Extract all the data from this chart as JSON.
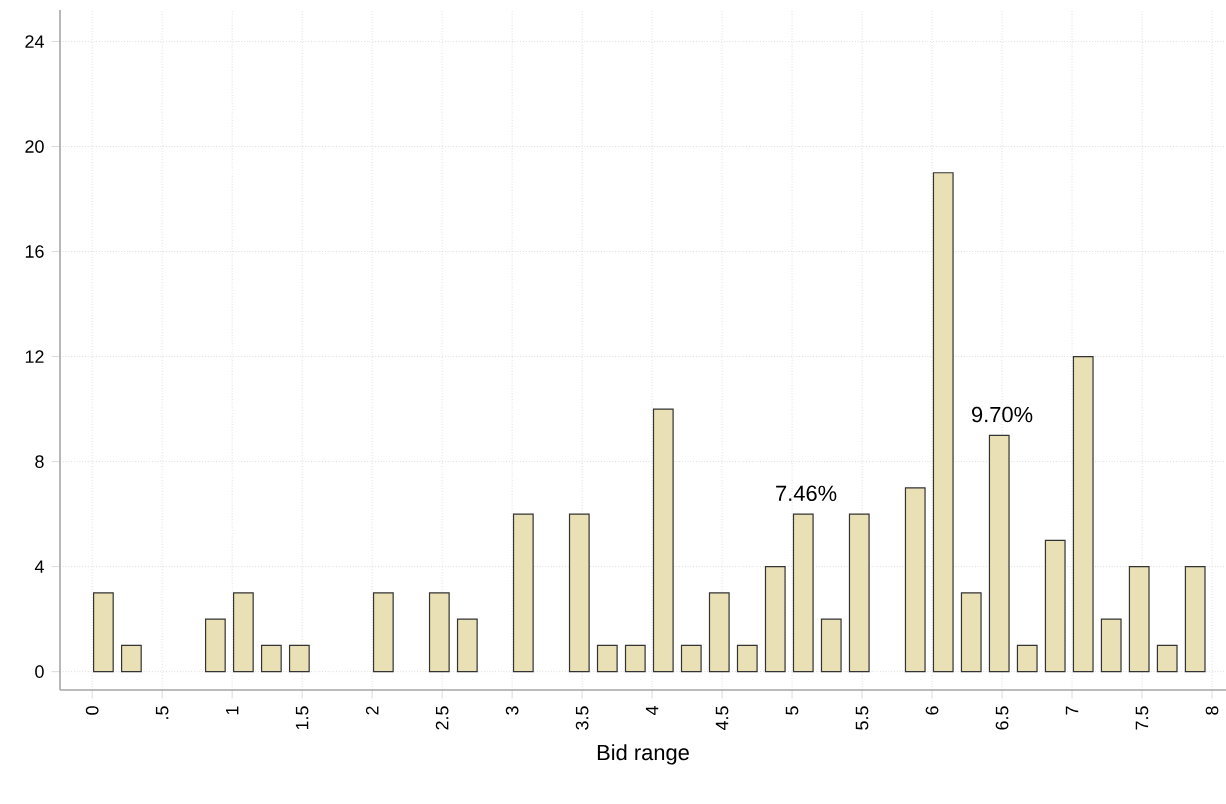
{
  "chart_data": {
    "type": "histogram",
    "xlabel": "Bid range",
    "bins": [
      0,
      0.2,
      0.4,
      0.6,
      0.8,
      1.0,
      1.2,
      1.4,
      1.6,
      1.8,
      2.0,
      2.2,
      2.4,
      2.6,
      2.8,
      3.0,
      3.2,
      3.4,
      3.6,
      3.8,
      4.0,
      4.2,
      4.4,
      4.6,
      4.8,
      5.0,
      5.2,
      5.4,
      5.6,
      5.8,
      6.0,
      6.2,
      6.4,
      6.6,
      6.8,
      7.0,
      7.2,
      7.4,
      7.6,
      7.8,
      8.0
    ],
    "values": [
      3,
      1,
      0,
      0,
      2,
      3,
      1,
      1,
      0,
      0,
      3,
      0,
      3,
      2,
      0,
      6,
      0,
      6,
      1,
      1,
      10,
      1,
      3,
      1,
      4,
      6,
      2,
      6,
      0,
      7,
      19,
      3,
      9,
      1,
      5,
      12,
      2,
      4,
      1,
      4
    ],
    "color": "#eae0b6",
    "xlim": [
      -0.23,
      8.1
    ],
    "ylim": [
      -0.7,
      25.2
    ],
    "xticks": [
      0,
      {
        "value": 0.5,
        "label": ".5"
      },
      1,
      1.5,
      2,
      2.5,
      3,
      3.5,
      4,
      4.5,
      5,
      5.5,
      6,
      6.5,
      7,
      7.5,
      8
    ],
    "yticks": [
      0,
      4,
      8,
      12,
      16,
      20,
      24
    ],
    "grid": true,
    "annotations": [
      {
        "text": "7.46%",
        "x": 5.1,
        "y": 6
      },
      {
        "text": "9.70%",
        "x": 6.5,
        "y": 9
      }
    ]
  }
}
